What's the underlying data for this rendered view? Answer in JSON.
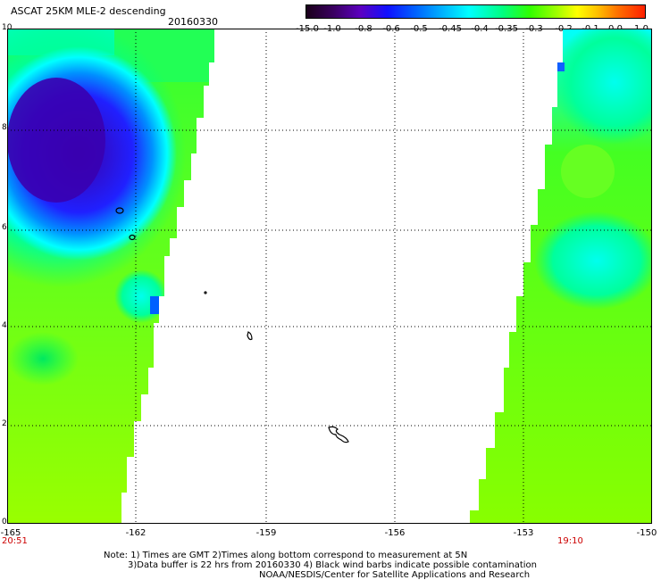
{
  "header": {
    "title": "ASCAT 25KM MLE-2 descending",
    "date": "20160330"
  },
  "colorbar": {
    "labels": [
      "-15.0",
      "-1.0",
      "-0.8",
      "-0.6",
      "-0.5",
      "-0.45",
      "-0.4",
      "-0.35",
      "-0.3",
      "-0.2",
      "-0.1",
      "0.0",
      "1.0"
    ]
  },
  "axes": {
    "y_ticks": [
      "10",
      "8",
      "6",
      "4",
      "2",
      "0"
    ],
    "x_ticks": [
      "-165",
      "-162",
      "-159",
      "-156",
      "-153",
      "-150"
    ]
  },
  "times": {
    "left": "20:51",
    "right": "19:10"
  },
  "footer": {
    "line1": "Note: 1) Times are GMT 2)Times along bottom correspond to measurement at 5N",
    "line2": "3)Data buffer is 22 hrs from 20160330 4) Black wind barbs indicate possible contamination",
    "line3": "NOAA/NESDIS/Center for Satellite Applications and Research"
  },
  "colors": {
    "swath_base": "#66ff00",
    "low": "#3b00a8",
    "cyan": "#00ffff",
    "highlight_time": "#cc0000"
  }
}
